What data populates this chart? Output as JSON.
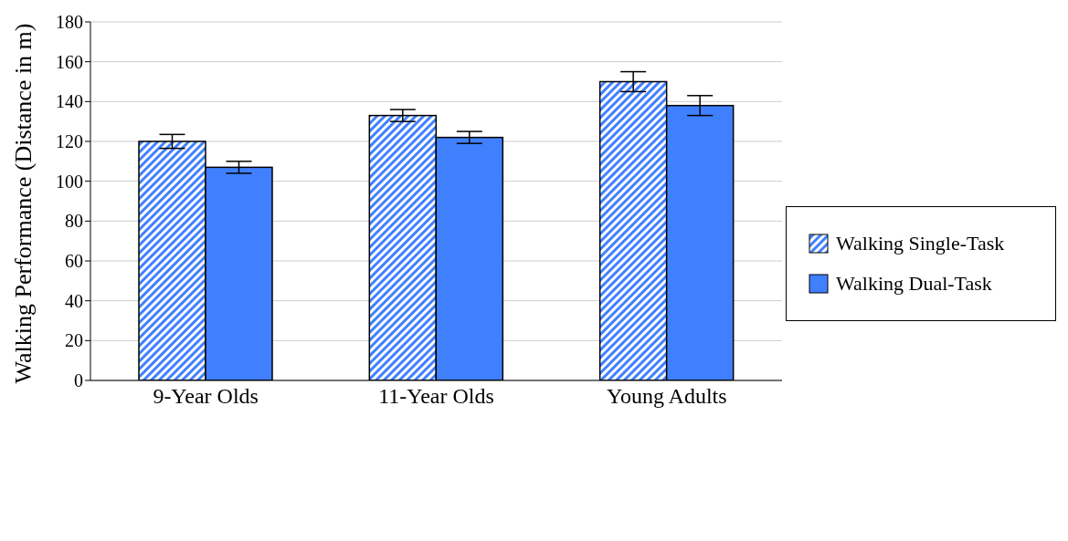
{
  "chart_data": {
    "type": "bar",
    "ylabel": "Walking Performance (Distance in m)",
    "categories": [
      "9-Year Olds",
      "11-Year Olds",
      "Young Adults"
    ],
    "series": [
      {
        "name": "Walking Single-Task",
        "color": "#4080ff",
        "values": [
          120,
          133,
          150
        ],
        "errors": [
          3.5,
          3,
          5
        ]
      },
      {
        "name": "Walking Dual-Task",
        "color": "#4080ff",
        "values": [
          107,
          122,
          138
        ],
        "errors": [
          3,
          3,
          5
        ]
      }
    ],
    "ylim": [
      0,
      180
    ],
    "yticks": [
      0,
      20,
      40,
      60,
      80,
      100,
      120,
      140,
      160,
      180
    ],
    "grid": "y",
    "legend": "right"
  }
}
